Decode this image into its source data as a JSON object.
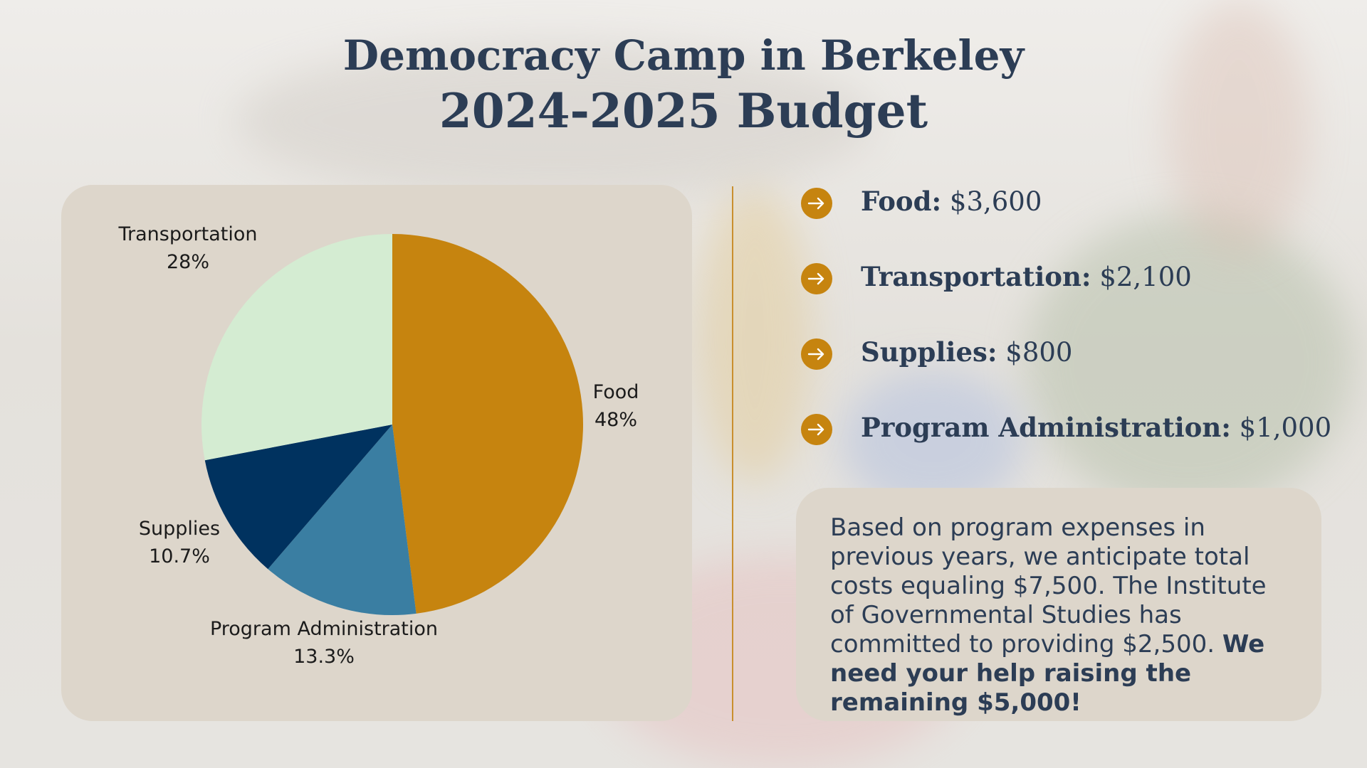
{
  "title": {
    "line1": "Democracy Camp in Berkeley",
    "line2": "2024-2025 Budget"
  },
  "colors": {
    "title": "#2c3d55",
    "accent": "#c6840f",
    "card": "#ddd6cb"
  },
  "chart_data": {
    "type": "pie",
    "slices": [
      {
        "label": "Food",
        "percent_label": "48%",
        "value": 48,
        "color": "#c6840f"
      },
      {
        "label": "Program Administration",
        "percent_label": "13.3%",
        "value": 13.3,
        "color": "#3a7ea2"
      },
      {
        "label": "Supplies",
        "percent_label": "10.7%",
        "value": 10.7,
        "color": "#00325f"
      },
      {
        "label": "Transportation",
        "percent_label": "28%",
        "value": 28,
        "color": "#d4ecd2"
      }
    ]
  },
  "budget_items": [
    {
      "label": "Food:",
      "amount": "$3,600"
    },
    {
      "label": "Transportation:",
      "amount": "$2,100"
    },
    {
      "label": "Supplies:",
      "amount": "$800"
    },
    {
      "label": "Program Administration:",
      "amount": "$1,000"
    }
  ],
  "icons": {
    "item_marker": "arrow-right-circle-icon"
  },
  "note": {
    "text": "Based on program expenses in previous years, we anticipate total costs equaling $7,500. The Institute of Governmental Studies has committed to providing $2,500.",
    "bold": "We need your help raising the remaining $5,000!"
  }
}
